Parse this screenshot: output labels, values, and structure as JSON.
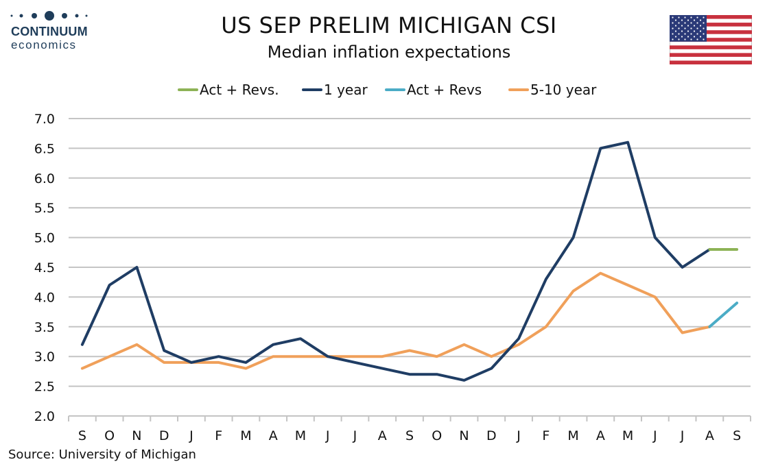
{
  "header": {
    "logo_name": "CONTINUUM",
    "logo_sub": "economics",
    "title": "US SEP PRELIM MICHIGAN CSI",
    "subtitle": "Median inflation expectations"
  },
  "source": "Source: University of Michigan",
  "colors": {
    "act_revs_1y": "#8db356",
    "one_year": "#1f3d64",
    "act_revs_5_10": "#4bacc6",
    "five_ten_year": "#f0a05a",
    "grid": "#c4c4c4",
    "logo": "#1f3d5a"
  },
  "chart_data": {
    "type": "line",
    "title": "US SEP PRELIM MICHIGAN CSI",
    "subtitle": "Median inflation expectations",
    "categories": [
      "S",
      "O",
      "N",
      "D",
      "J",
      "F",
      "M",
      "A",
      "M",
      "J",
      "J",
      "A",
      "S",
      "O",
      "N",
      "D",
      "J",
      "F",
      "M",
      "A",
      "M",
      "J",
      "J",
      "A",
      "S"
    ],
    "ylim": [
      2.0,
      7.0
    ],
    "yticks": [
      "2.0",
      "2.5",
      "3.0",
      "3.5",
      "4.0",
      "4.5",
      "5.0",
      "5.5",
      "6.0",
      "6.5",
      "7.0"
    ],
    "grid": true,
    "legend_position": "top",
    "series": [
      {
        "name": "Act + Revs.",
        "color_key": "act_revs_1y",
        "values": [
          null,
          null,
          null,
          null,
          null,
          null,
          null,
          null,
          null,
          null,
          null,
          null,
          null,
          null,
          null,
          null,
          null,
          null,
          null,
          null,
          null,
          null,
          null,
          4.8,
          4.8
        ]
      },
      {
        "name": "1 year",
        "color_key": "one_year",
        "values": [
          3.2,
          4.2,
          4.5,
          3.1,
          2.9,
          3.0,
          2.9,
          3.2,
          3.3,
          3.0,
          2.9,
          2.8,
          2.7,
          2.7,
          2.6,
          2.8,
          3.3,
          4.3,
          5.0,
          6.5,
          6.6,
          5.0,
          4.5,
          4.8,
          null
        ]
      },
      {
        "name": "Act + Revs",
        "color_key": "act_revs_5_10",
        "values": [
          null,
          null,
          null,
          null,
          null,
          null,
          null,
          null,
          null,
          null,
          null,
          null,
          null,
          null,
          null,
          null,
          null,
          null,
          null,
          null,
          null,
          null,
          null,
          3.5,
          3.9
        ]
      },
      {
        "name": "5-10 year",
        "color_key": "five_ten_year",
        "values": [
          2.8,
          3.0,
          3.2,
          2.9,
          2.9,
          2.9,
          2.8,
          3.0,
          3.0,
          3.0,
          3.0,
          3.0,
          3.1,
          3.0,
          3.2,
          3.0,
          3.2,
          3.5,
          4.1,
          4.4,
          4.2,
          4.0,
          3.4,
          3.5,
          null
        ]
      }
    ]
  }
}
